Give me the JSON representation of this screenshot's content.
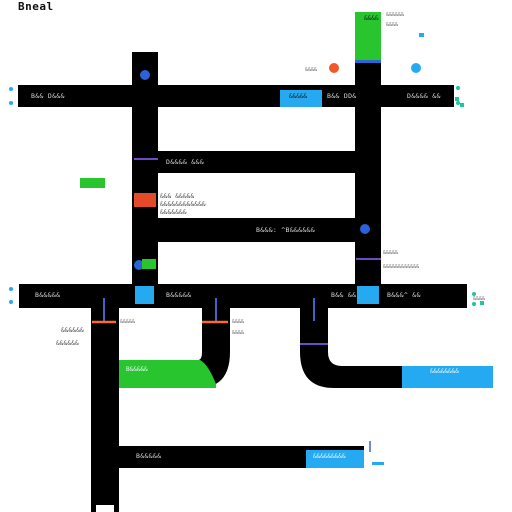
{
  "map": {
    "title": "Bneal"
  },
  "roads": {
    "top_left": "B&& D&&&",
    "top_middle": "B&& DD&",
    "top_right": "D&&&& &&",
    "second_row": "D&&&& &&&",
    "middle_long": "B&&&: ^B&&&&&&",
    "lower_left": "B&&&&&",
    "lower_middle": "B&&&&&",
    "lower_right": "B&& &&",
    "bottom_green": "B&&&&&",
    "bottom_road": "B&&&&&",
    "right_small": "B&&&^ &&",
    "blue_top_right": "&&&&&",
    "blue_bottom_right": "&&&&&&&&",
    "blue_bottom": "&&&&&&&&&"
  },
  "annotations": {
    "top_green_box": "&&&&",
    "top_green_side": "&&&&&&",
    "left_red_box": "&&& &&&&&",
    "left_red_box_line2": "&&&&&&&&&&&&",
    "left_red_box_line3": "&&&&&&&",
    "upper_right_text": "&&&&&",
    "mid_right_text": "&&&&&&&&&&&&",
    "left_side_text_1": "&&&&&&",
    "left_side_text_2": "&&&&&&",
    "middle_small_text_1": "&&&&&",
    "middle_small_text_2": "&&&&",
    "middle_small_text_3": "&&&&",
    "right_side_text": "&&&&",
    "top_small_text": "&&&&",
    "upper_left_edge": "&&&&"
  },
  "colors": {
    "road": "#000000",
    "accent_blue": "#25aaf2",
    "accent_green": "#28c52f",
    "accent_red": "#e34a2a",
    "accent_orange": "#ff6a2a",
    "accent_purple": "#6c4bc5",
    "accent_teal": "#1cc6a0",
    "label_gray": "#d8d8d8"
  },
  "icons": {
    "marker_top": "blue-pin-icon",
    "marker_left": "blue-pin-icon",
    "marker_right": "blue-pin-icon",
    "marker_bottom": "blue-pin-icon",
    "red_dot": "red-dot-icon",
    "blue_dot": "blue-dot-icon"
  }
}
